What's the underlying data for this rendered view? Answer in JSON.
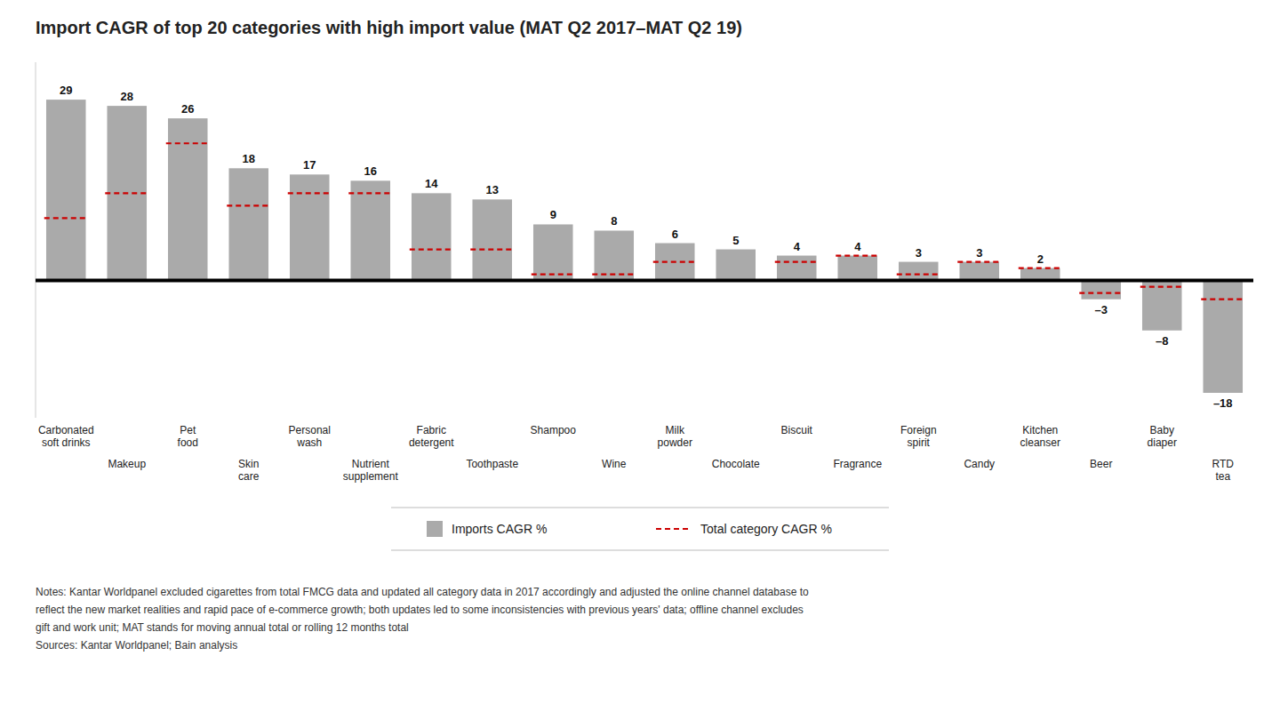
{
  "chart_data": {
    "type": "bar",
    "title": "Import CAGR of top 20 categories with high import value (MAT Q2 2017–MAT Q2 19)",
    "categories": [
      "Carbonated\nsoft drinks",
      "Makeup",
      "Pet\nfood",
      "Skin\ncare",
      "Personal\nwash",
      "Nutrient\nsupplement",
      "Fabric\ndetergent",
      "Toothpaste",
      "Shampoo",
      "Wine",
      "Milk\npowder",
      "Chocolate",
      "Biscuit",
      "Fragrance",
      "Foreign\nspirit",
      "Candy",
      "Kitchen\ncleanser",
      "Beer",
      "Baby\ndiaper",
      "RTD\ntea"
    ],
    "series": [
      {
        "name": "Imports CAGR %",
        "type": "bar",
        "color": "#aaaaaa",
        "values": [
          29,
          28,
          26,
          18,
          17,
          16,
          14,
          13,
          9,
          8,
          6,
          5,
          4,
          4,
          3,
          3,
          2,
          -3,
          -8,
          -18
        ],
        "value_labels": [
          "29",
          "28",
          "26",
          "18",
          "17",
          "16",
          "14",
          "13",
          "9",
          "8",
          "6",
          "5",
          "4",
          "4",
          "3",
          "3",
          "2",
          "–3",
          "–8",
          "–18"
        ]
      },
      {
        "name": "Total category CAGR %",
        "type": "scatter",
        "marker": "hline",
        "line_style": "dashed",
        "color": "#cc0000",
        "values": [
          10,
          14,
          22,
          12,
          14,
          14,
          5,
          5,
          1,
          1,
          3,
          0,
          3,
          4,
          1,
          3,
          2,
          -2,
          -1,
          -3
        ]
      }
    ],
    "ylim": [
      -22,
      35
    ],
    "tick_labels": "x",
    "grid": false,
    "legend": "bottom",
    "data_labels": true,
    "annotations": [
      "Notes: Kantar Worldpanel excluded cigarettes from total FMCG data and updated all category data in 2017 accordingly and adjusted the online channel database to",
      "reflect the new market realities and rapid pace of e-commerce growth; both updates led to some inconsistencies with previous years' data; offline channel excludes",
      "gift and work unit; MAT stands for moving annual total or rolling 12 months total",
      "Sources: Kantar Worldpanel; Bain analysis"
    ]
  }
}
